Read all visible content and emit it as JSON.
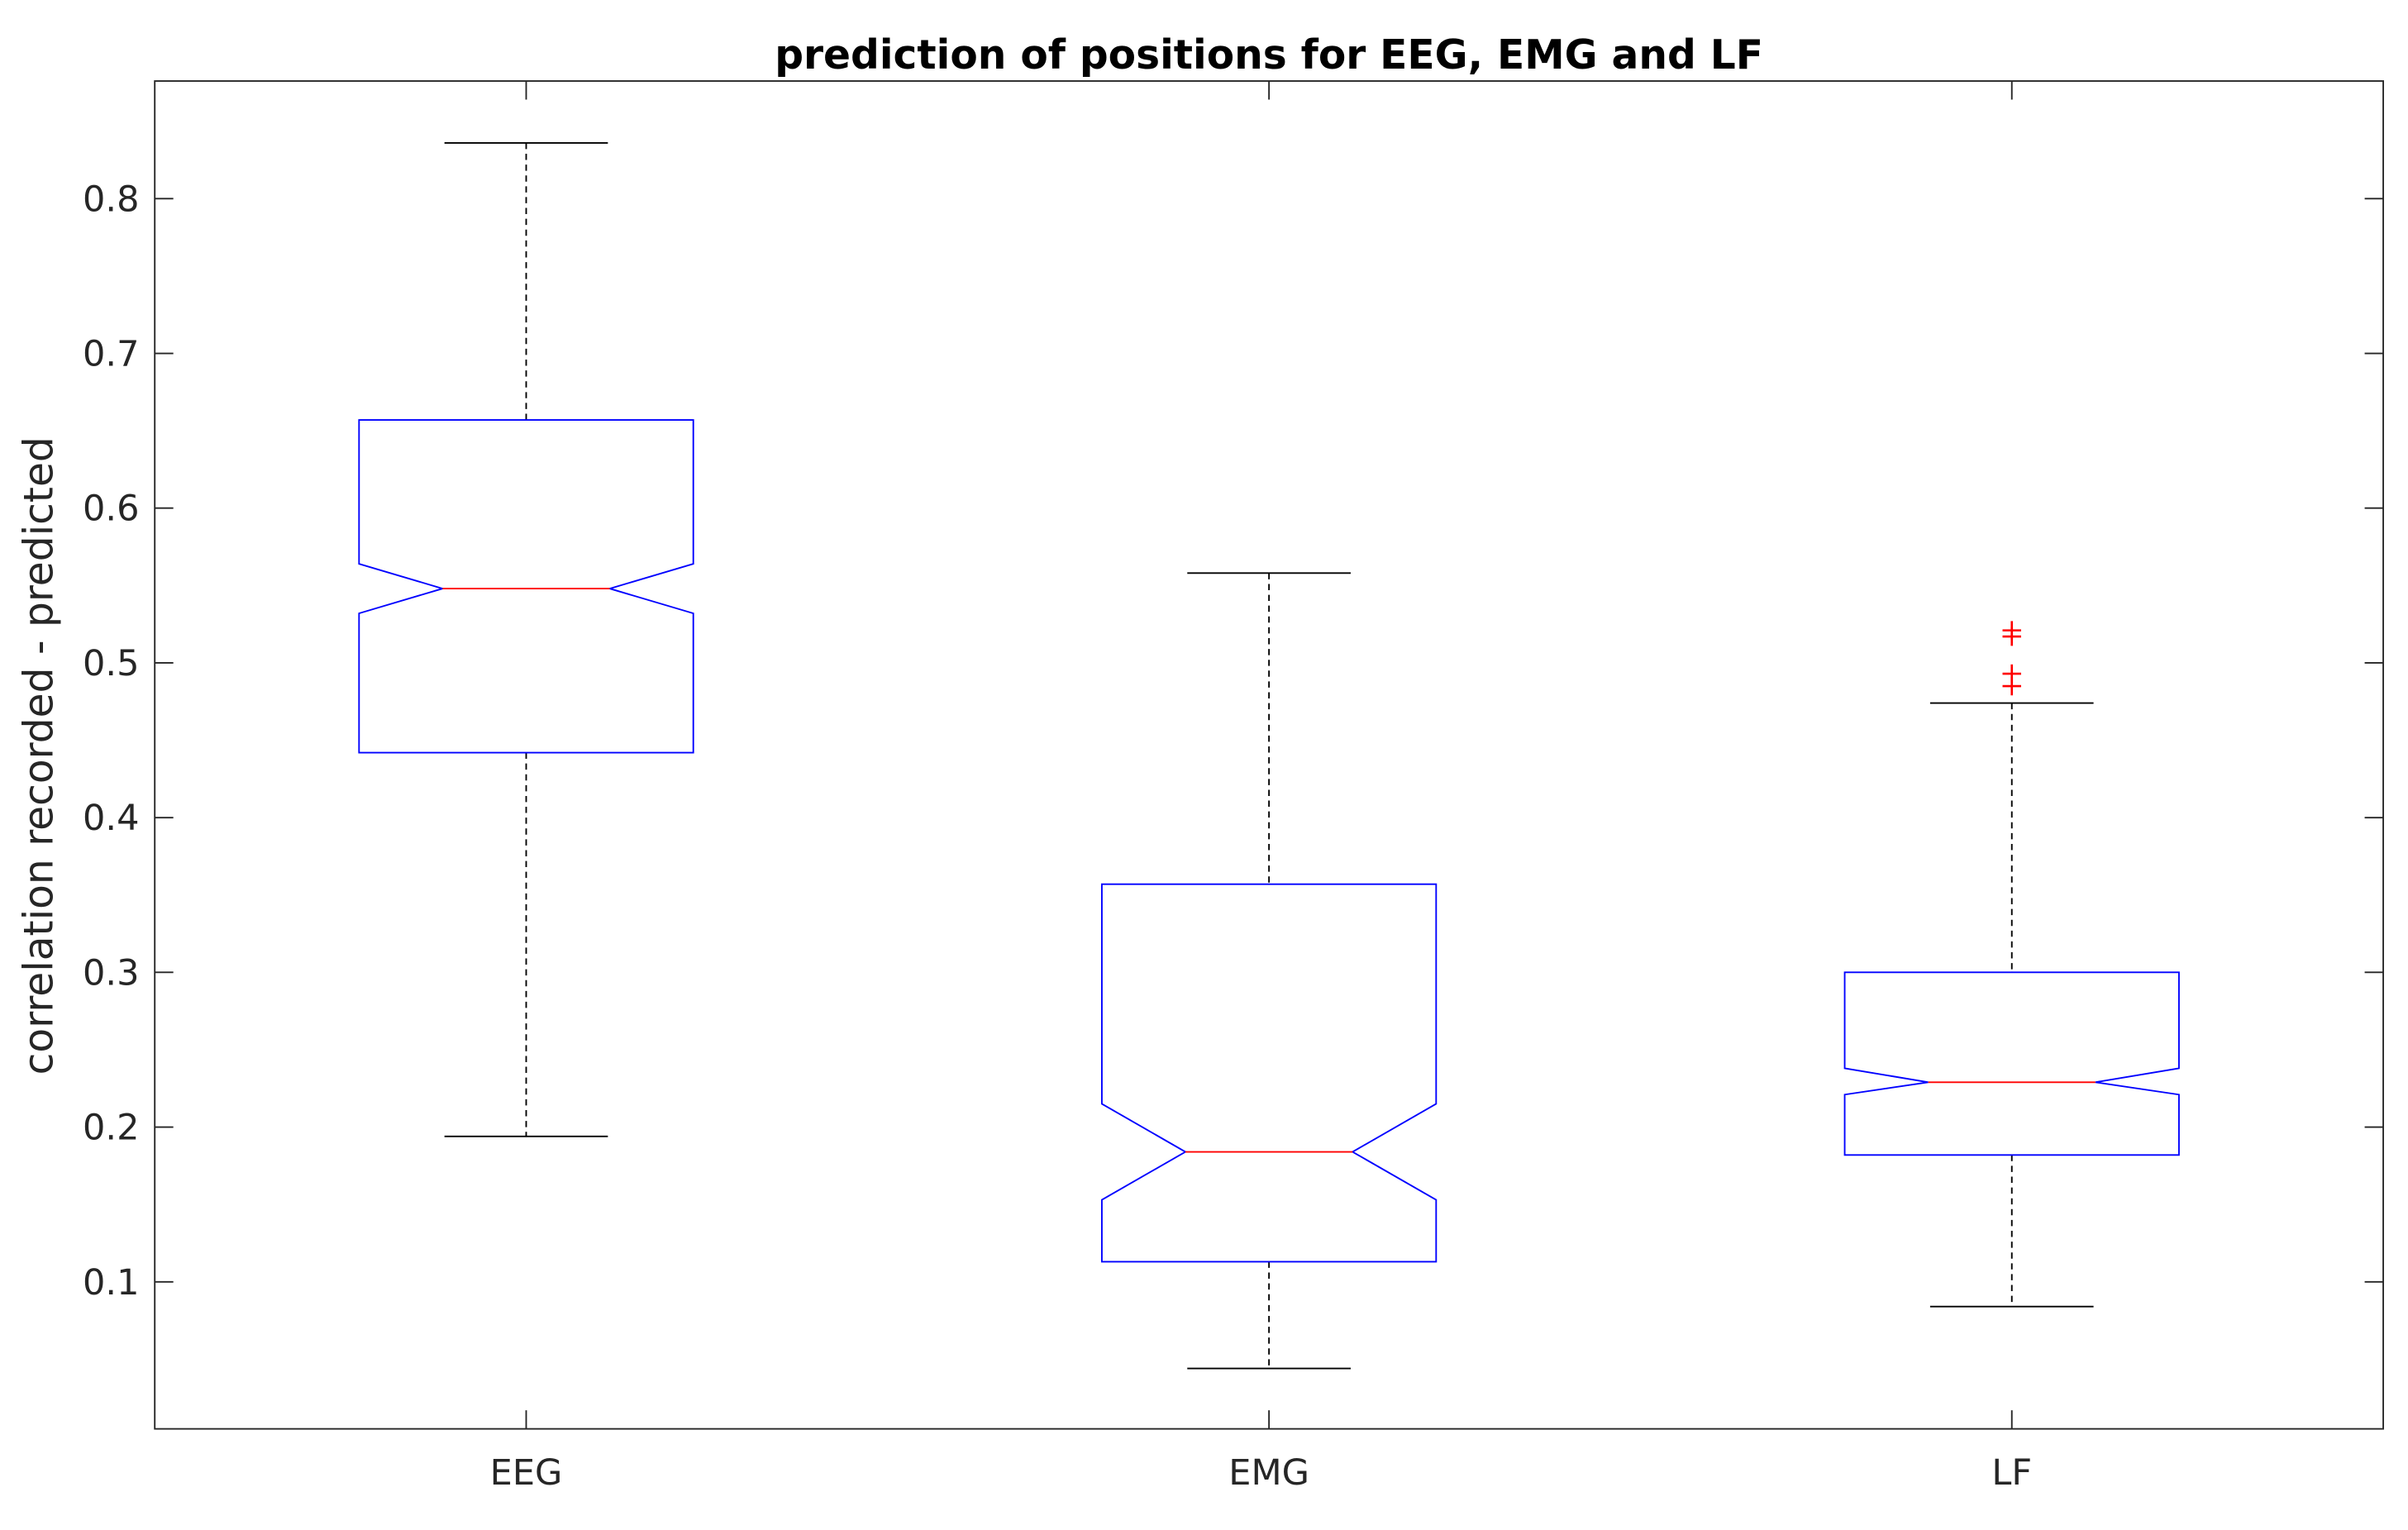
{
  "chart_data": {
    "type": "boxplot",
    "title": "prediction of positions for EEG, EMG and LF",
    "xlabel": "",
    "ylabel": "correlation recorded - predicted",
    "categories": [
      "EEG",
      "EMG",
      "LF"
    ],
    "ylim": [
      0.005,
      0.876
    ],
    "xlim": [
      0.5,
      3.5
    ],
    "yticks": [
      0.1,
      0.2,
      0.3,
      0.4,
      0.5,
      0.6,
      0.7,
      0.8
    ],
    "ytick_labels": [
      "0.1",
      "0.2",
      "0.3",
      "0.4",
      "0.5",
      "0.6",
      "0.7",
      "0.8"
    ],
    "grid": false,
    "notched": true,
    "colors": {
      "box": "#0000ff",
      "median": "#ff0000",
      "whisker": "#000000",
      "outlier": "#ff0000"
    },
    "boxes": [
      {
        "name": "EEG",
        "whisker_low": 0.194,
        "q1": 0.442,
        "notch_low": 0.532,
        "median": 0.548,
        "notch_high": 0.564,
        "q3": 0.657,
        "whisker_high": 0.836,
        "outliers": []
      },
      {
        "name": "EMG",
        "whisker_low": 0.044,
        "q1": 0.113,
        "notch_low": 0.153,
        "median": 0.184,
        "notch_high": 0.215,
        "q3": 0.357,
        "whisker_high": 0.558,
        "outliers": []
      },
      {
        "name": "LF",
        "whisker_low": 0.084,
        "q1": 0.182,
        "notch_low": 0.221,
        "median": 0.229,
        "notch_high": 0.238,
        "q3": 0.3,
        "whisker_high": 0.474,
        "outliers": [
          0.521,
          0.517,
          0.493,
          0.485
        ]
      }
    ]
  }
}
